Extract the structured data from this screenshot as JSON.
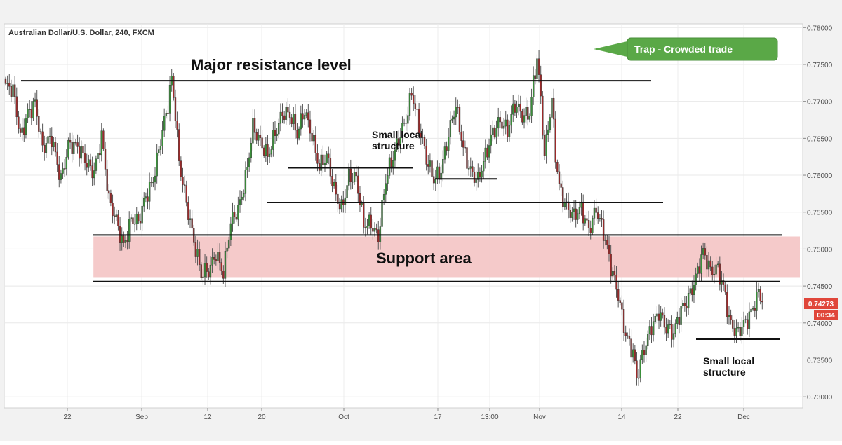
{
  "chart_data": {
    "type": "candlestick",
    "title": "Australian Dollar/U.S. Dollar, 240, FXCM",
    "y_range": [
      0.7285,
      0.7805
    ],
    "y_ticks": [
      "0.78000",
      "0.77500",
      "0.77000",
      "0.76500",
      "0.76000",
      "0.75500",
      "0.75000",
      "0.74500",
      "0.74000",
      "0.73500",
      "0.73000"
    ],
    "x_ticks": [
      "22",
      "Sep",
      "12",
      "20",
      "Oct",
      "17",
      "13:00",
      "Nov",
      "14",
      "22",
      "Dec"
    ],
    "current_price": "0.74273",
    "countdown": "00:34",
    "colors": {
      "up": "#3a8f3a",
      "down": "#9c2a2a",
      "band": "#f4c7c7",
      "callout": "#5aa847",
      "price_tag": "#e0463a"
    },
    "path_points": [
      [
        0,
        0.772
      ],
      [
        4,
        0.771
      ],
      [
        8,
        0.765
      ],
      [
        12,
        0.769
      ],
      [
        16,
        0.77
      ],
      [
        20,
        0.763
      ],
      [
        25,
        0.765
      ],
      [
        30,
        0.76
      ],
      [
        34,
        0.764
      ],
      [
        40,
        0.763
      ],
      [
        48,
        0.761
      ],
      [
        52,
        0.765
      ],
      [
        56,
        0.756
      ],
      [
        60,
        0.754
      ],
      [
        64,
        0.751
      ],
      [
        68,
        0.754
      ],
      [
        72,
        0.753
      ],
      [
        76,
        0.757
      ],
      [
        80,
        0.76
      ],
      [
        84,
        0.765
      ],
      [
        88,
        0.769
      ],
      [
        90,
        0.7725
      ],
      [
        92,
        0.768
      ],
      [
        94,
        0.762
      ],
      [
        98,
        0.757
      ],
      [
        102,
        0.751
      ],
      [
        106,
        0.746
      ],
      [
        110,
        0.747
      ],
      [
        114,
        0.75
      ],
      [
        118,
        0.747
      ],
      [
        122,
        0.753
      ],
      [
        126,
        0.755
      ],
      [
        130,
        0.76
      ],
      [
        134,
        0.767
      ],
      [
        138,
        0.764
      ],
      [
        142,
        0.762
      ],
      [
        146,
        0.766
      ],
      [
        150,
        0.769
      ],
      [
        154,
        0.768
      ],
      [
        158,
        0.765
      ],
      [
        162,
        0.769
      ],
      [
        166,
        0.766
      ],
      [
        170,
        0.761
      ],
      [
        174,
        0.762
      ],
      [
        178,
        0.758
      ],
      [
        182,
        0.756
      ],
      [
        186,
        0.76
      ],
      [
        190,
        0.759
      ],
      [
        194,
        0.753
      ],
      [
        198,
        0.754
      ],
      [
        202,
        0.752
      ],
      [
        206,
        0.759
      ],
      [
        210,
        0.762
      ],
      [
        214,
        0.766
      ],
      [
        218,
        0.769
      ],
      [
        220,
        0.7715
      ],
      [
        224,
        0.766
      ],
      [
        228,
        0.762
      ],
      [
        232,
        0.76
      ],
      [
        236,
        0.761
      ],
      [
        240,
        0.765
      ],
      [
        244,
        0.769
      ],
      [
        248,
        0.764
      ],
      [
        252,
        0.761
      ],
      [
        256,
        0.759
      ],
      [
        260,
        0.762
      ],
      [
        264,
        0.766
      ],
      [
        268,
        0.768
      ],
      [
        272,
        0.766
      ],
      [
        276,
        0.769
      ],
      [
        280,
        0.768
      ],
      [
        284,
        0.769
      ],
      [
        286,
        0.773
      ],
      [
        288,
        0.776
      ],
      [
        290,
        0.77
      ],
      [
        292,
        0.762
      ],
      [
        294,
        0.766
      ],
      [
        296,
        0.77
      ],
      [
        298,
        0.763
      ],
      [
        300,
        0.759
      ],
      [
        304,
        0.756
      ],
      [
        308,
        0.754
      ],
      [
        312,
        0.755
      ],
      [
        316,
        0.753
      ],
      [
        320,
        0.756
      ],
      [
        324,
        0.752
      ],
      [
        328,
        0.747
      ],
      [
        332,
        0.744
      ],
      [
        336,
        0.739
      ],
      [
        340,
        0.736
      ],
      [
        342,
        0.732
      ],
      [
        346,
        0.736
      ],
      [
        350,
        0.74
      ],
      [
        354,
        0.742
      ],
      [
        358,
        0.739
      ],
      [
        362,
        0.738
      ],
      [
        366,
        0.742
      ],
      [
        370,
        0.744
      ],
      [
        374,
        0.746
      ],
      [
        378,
        0.749
      ],
      [
        382,
        0.747
      ],
      [
        386,
        0.748
      ],
      [
        390,
        0.744
      ],
      [
        392,
        0.74
      ],
      [
        396,
        0.738
      ],
      [
        400,
        0.74
      ],
      [
        404,
        0.742
      ],
      [
        408,
        0.744
      ],
      [
        410,
        0.7427
      ]
    ],
    "levels": [
      {
        "name": "major-resistance-line",
        "y": 0.7728,
        "x": [
          0,
          300
        ]
      },
      {
        "name": "local-structure-line-1",
        "y": 0.761,
        "x": [
          130,
          186
        ]
      },
      {
        "name": "local-structure-line-2",
        "y": 0.7595,
        "x": [
          200,
          226
        ]
      },
      {
        "name": "local-structure-line-3",
        "y": 0.7563,
        "x": [
          122,
          306
        ]
      },
      {
        "name": "support-top-line",
        "y": 0.7519,
        "x": [
          40,
          362
        ]
      },
      {
        "name": "support-bottom-line",
        "y": 0.7456,
        "x": [
          40,
          362
        ]
      },
      {
        "name": "local-structure-line-4",
        "y": 0.7378,
        "x": [
          324,
          362
        ]
      }
    ],
    "support_band": {
      "y_top": 0.7517,
      "y_bottom": 0.7462,
      "x": [
        40,
        370
      ]
    },
    "annotations": {
      "major_resistance": "Major resistance level",
      "support_area": "Support area",
      "local_structure_1_line1": "Small local",
      "local_structure_1_line2": "structure",
      "local_structure_2_line1": "Small local",
      "local_structure_2_line2": "structure",
      "callout": "Trap - Crowded trade"
    }
  }
}
